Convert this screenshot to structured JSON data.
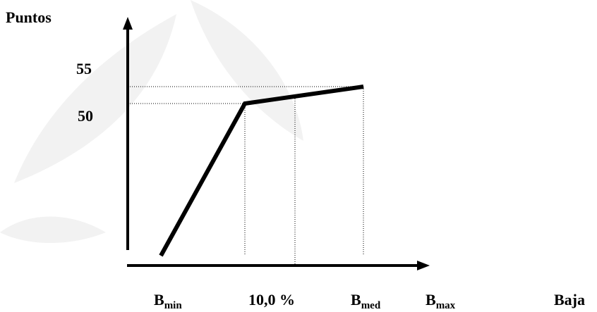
{
  "axis": {
    "y_label": "Puntos",
    "x_label": "Baja"
  },
  "y_labels": [
    "55",
    "50"
  ],
  "x_labels": [
    {
      "base": "B",
      "sub": "min"
    },
    {
      "text": "10,0 %"
    },
    {
      "base": "B",
      "sub": "med"
    },
    {
      "base": "B",
      "sub": "max"
    }
  ]
}
